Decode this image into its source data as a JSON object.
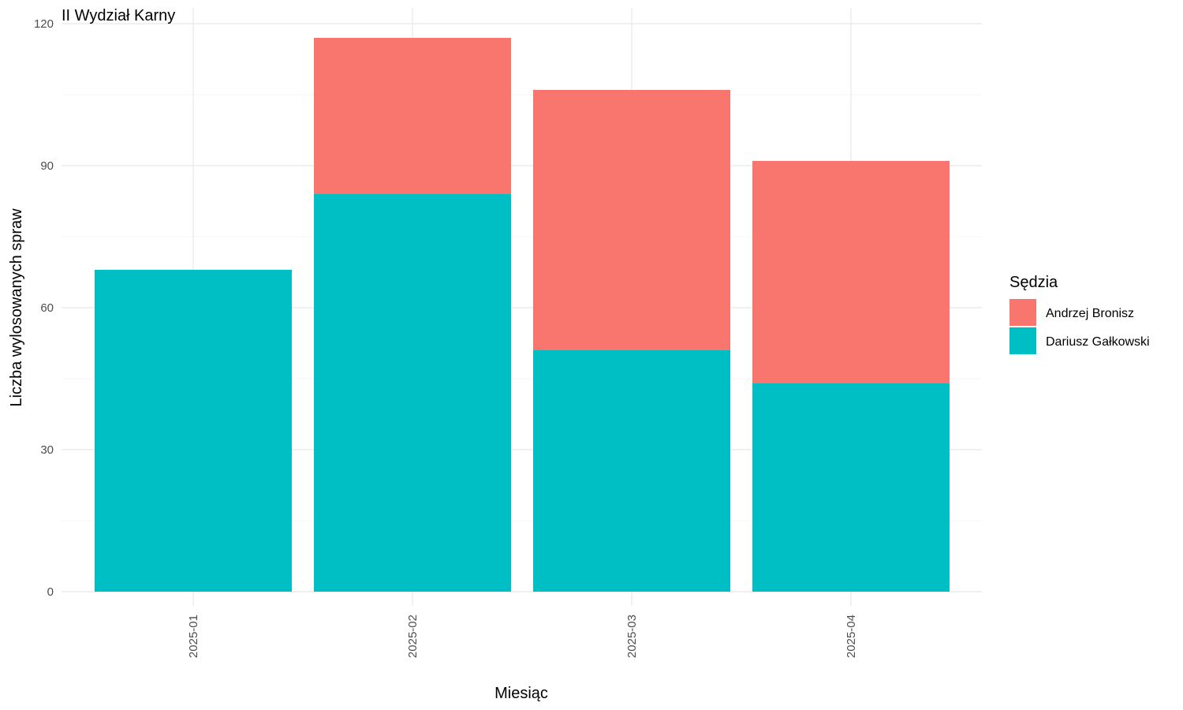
{
  "chart_data": {
    "type": "bar",
    "stacked": true,
    "title": "II Wydział Karny",
    "xlabel": "Miesiąc",
    "ylabel": "Liczba wylosowanych spraw",
    "categories": [
      "2025-01",
      "2025-02",
      "2025-03",
      "2025-04"
    ],
    "series": [
      {
        "name": "Dariusz Gałkowski",
        "values": [
          68,
          84,
          51,
          44
        ],
        "color": "#00BFC4"
      },
      {
        "name": "Andrzej Bronisz",
        "values": [
          0,
          33,
          55,
          47
        ],
        "color": "#F8766D"
      }
    ],
    "ylim": [
      0,
      120
    ],
    "yticks": [
      0,
      30,
      60,
      90,
      120
    ],
    "grid": true,
    "legend": {
      "title": "Sędzia",
      "position": "right",
      "entries": [
        "Andrzej Bronisz",
        "Dariusz Gałkowski"
      ]
    }
  }
}
